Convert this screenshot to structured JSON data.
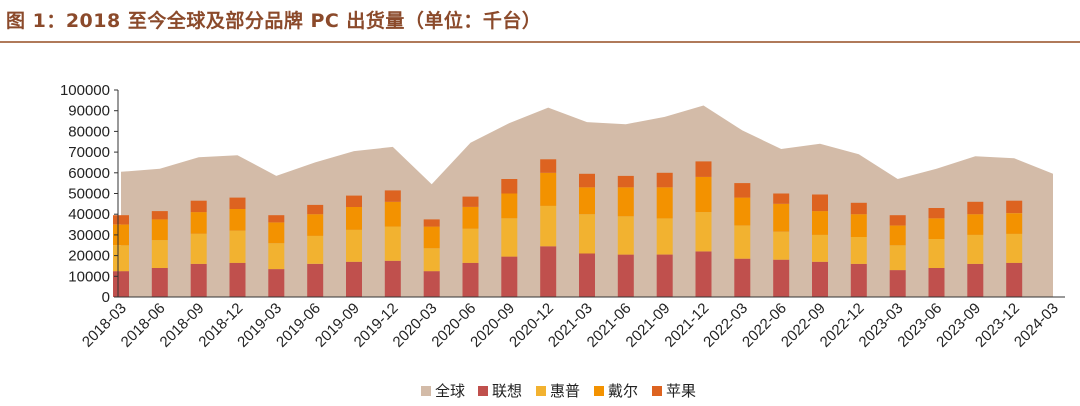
{
  "title": "图 1：2018 至今全球及部分品牌 PC 出货量（单位：千台）",
  "colors": {
    "global": "#D3BBA8",
    "lenovo": "#C0504D",
    "hp": "#F2B230",
    "dell": "#F39200",
    "apple": "#DD6320"
  },
  "chart_data": {
    "type": "bar",
    "categories": [
      "2018-03",
      "2018-06",
      "2018-09",
      "2018-12",
      "2019-03",
      "2019-06",
      "2019-09",
      "2019-12",
      "2020-03",
      "2020-06",
      "2020-09",
      "2020-12",
      "2021-03",
      "2021-06",
      "2021-09",
      "2021-12",
      "2022-03",
      "2022-06",
      "2022-09",
      "2022-12",
      "2023-03",
      "2023-06",
      "2023-09",
      "2023-12",
      "2024-03"
    ],
    "ylim": [
      0,
      100000
    ],
    "yticks": [
      0,
      10000,
      20000,
      30000,
      40000,
      50000,
      60000,
      70000,
      80000,
      90000,
      100000
    ],
    "area_series": {
      "name": "全球",
      "values": [
        60500,
        62000,
        67500,
        68500,
        58500,
        65000,
        70500,
        72500,
        54500,
        74500,
        84000,
        91500,
        84500,
        83500,
        87000,
        92500,
        80500,
        71500,
        74000,
        69000,
        57000,
        62000,
        68000,
        67000,
        59500
      ]
    },
    "series": [
      {
        "name": "联想",
        "values": [
          12500,
          14000,
          16000,
          16500,
          13500,
          16000,
          17000,
          17500,
          12500,
          16500,
          19500,
          24500,
          21000,
          20500,
          20500,
          22000,
          18500,
          18000,
          17000,
          16000,
          13000,
          14000,
          16000,
          16500,
          null
        ]
      },
      {
        "name": "惠普",
        "values": [
          12500,
          13500,
          14500,
          15500,
          12500,
          13500,
          15500,
          16500,
          11000,
          16500,
          18500,
          19500,
          19000,
          18500,
          17500,
          19000,
          16000,
          13500,
          13000,
          13000,
          12000,
          14000,
          14000,
          14000,
          null
        ]
      },
      {
        "name": "戴尔",
        "values": [
          10000,
          10000,
          10500,
          10500,
          10000,
          10500,
          11000,
          12000,
          10500,
          10500,
          12000,
          16000,
          13000,
          14000,
          15000,
          17000,
          13500,
          13500,
          11500,
          11000,
          9500,
          10000,
          10000,
          10000,
          null
        ]
      },
      {
        "name": "苹果",
        "values": [
          4500,
          4000,
          5500,
          5500,
          3500,
          4500,
          5500,
          5500,
          3500,
          5000,
          7000,
          6500,
          6500,
          5500,
          7000,
          7500,
          7000,
          5000,
          8000,
          5500,
          5000,
          5000,
          6000,
          6000,
          null
        ]
      }
    ],
    "legend": [
      "全球",
      "联想",
      "惠普",
      "戴尔",
      "苹果"
    ],
    "legend_position": "bottom-center",
    "grid": false
  }
}
